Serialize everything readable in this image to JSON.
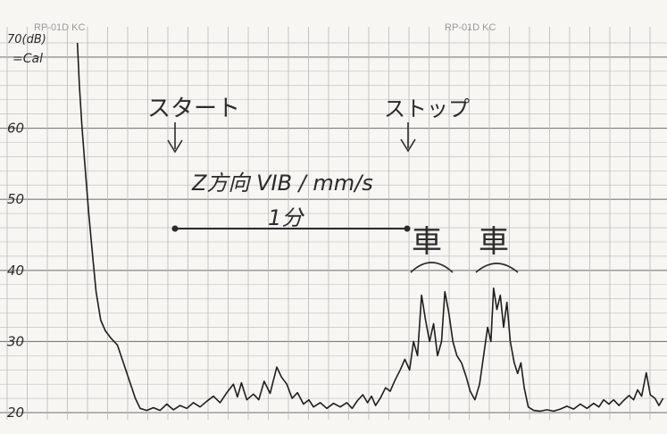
{
  "chart_data": {
    "type": "line",
    "header_left": "RP-01D KC",
    "header_right": "RP-01D KC",
    "y_unit_label": "70(dB)",
    "cal_label": "=Cal",
    "yticks": [
      {
        "value": 70,
        "label": "70"
      },
      {
        "value": 60,
        "label": "60"
      },
      {
        "value": 50,
        "label": "50"
      },
      {
        "value": 40,
        "label": "40"
      },
      {
        "value": 30,
        "label": "30"
      },
      {
        "value": 20,
        "label": "20"
      }
    ],
    "ylim": [
      19,
      73
    ],
    "xlim": [
      0,
      100
    ],
    "grid": true,
    "annotations": {
      "start": "スタート",
      "stop": "ストップ",
      "title": "Z方向 VIB / mm/s",
      "duration": "1分",
      "car": "車",
      "start_x": 25.4,
      "stop_x": 60.5,
      "car1_x": 64.5,
      "car2_x": 74.2
    },
    "series": [
      {
        "points": [
          [
            11.6,
            72
          ],
          [
            11.9,
            66
          ],
          [
            12.3,
            60
          ],
          [
            12.8,
            54
          ],
          [
            13.3,
            48
          ],
          [
            13.9,
            42
          ],
          [
            14.4,
            37
          ],
          [
            15.1,
            33
          ],
          [
            15.8,
            31.5
          ],
          [
            16.6,
            30.5
          ],
          [
            17.6,
            29.5
          ],
          [
            18.5,
            27
          ],
          [
            19.4,
            24.5
          ],
          [
            20.3,
            22
          ],
          [
            21.0,
            20.6
          ],
          [
            22.0,
            20.3
          ],
          [
            23.0,
            20.7
          ],
          [
            24.0,
            20.3
          ],
          [
            25.0,
            21.2
          ],
          [
            26.0,
            20.4
          ],
          [
            27.0,
            21.0
          ],
          [
            28.0,
            20.6
          ],
          [
            29.0,
            21.4
          ],
          [
            30.0,
            20.8
          ],
          [
            31.0,
            21.6
          ],
          [
            32.0,
            22.3
          ],
          [
            33.0,
            21.4
          ],
          [
            34.0,
            22.8
          ],
          [
            35.0,
            24.0
          ],
          [
            35.6,
            22.2
          ],
          [
            36.2,
            24.2
          ],
          [
            37.0,
            21.8
          ],
          [
            38.0,
            22.6
          ],
          [
            38.8,
            21.8
          ],
          [
            39.6,
            24.4
          ],
          [
            40.5,
            22.7
          ],
          [
            41.5,
            26.4
          ],
          [
            42.2,
            25.0
          ],
          [
            43.0,
            24.0
          ],
          [
            43.8,
            22.0
          ],
          [
            44.6,
            22.8
          ],
          [
            45.5,
            21.2
          ],
          [
            46.3,
            21.8
          ],
          [
            47.0,
            20.8
          ],
          [
            48.0,
            21.4
          ],
          [
            49.0,
            20.6
          ],
          [
            50.0,
            21.3
          ],
          [
            51.0,
            20.8
          ],
          [
            52.0,
            21.4
          ],
          [
            52.8,
            20.6
          ],
          [
            53.6,
            21.7
          ],
          [
            54.4,
            22.5
          ],
          [
            55.1,
            21.4
          ],
          [
            55.7,
            22.3
          ],
          [
            56.3,
            21.0
          ],
          [
            57.0,
            22.0
          ],
          [
            57.8,
            23.5
          ],
          [
            58.5,
            23.0
          ],
          [
            59.2,
            24.5
          ],
          [
            60.0,
            26.0
          ],
          [
            60.7,
            27.5
          ],
          [
            61.4,
            26.0
          ],
          [
            62.0,
            30.0
          ],
          [
            62.6,
            28.0
          ],
          [
            63.2,
            36.5
          ],
          [
            63.8,
            33.0
          ],
          [
            64.4,
            30.0
          ],
          [
            65.0,
            32.5
          ],
          [
            65.6,
            28.0
          ],
          [
            66.2,
            30.0
          ],
          [
            66.7,
            37.0
          ],
          [
            67.3,
            34.0
          ],
          [
            67.9,
            30.0
          ],
          [
            68.5,
            28.0
          ],
          [
            69.2,
            27.0
          ],
          [
            69.9,
            25.0
          ],
          [
            70.5,
            23.0
          ],
          [
            71.2,
            21.8
          ],
          [
            71.9,
            24.0
          ],
          [
            72.5,
            28.0
          ],
          [
            73.1,
            32.0
          ],
          [
            73.6,
            30.0
          ],
          [
            74.0,
            37.5
          ],
          [
            74.5,
            34.5
          ],
          [
            75.0,
            36.5
          ],
          [
            75.5,
            32.0
          ],
          [
            76.0,
            35.5
          ],
          [
            76.5,
            30.0
          ],
          [
            77.1,
            27.0
          ],
          [
            77.6,
            25.5
          ],
          [
            78.1,
            27.0
          ],
          [
            78.6,
            23.5
          ],
          [
            79.2,
            20.8
          ],
          [
            80.0,
            20.3
          ],
          [
            81.0,
            20.2
          ],
          [
            82.0,
            20.4
          ],
          [
            83.0,
            20.2
          ],
          [
            84.0,
            20.5
          ],
          [
            85.0,
            20.9
          ],
          [
            86.0,
            20.5
          ],
          [
            87.0,
            21.2
          ],
          [
            88.0,
            20.6
          ],
          [
            89.0,
            21.3
          ],
          [
            89.8,
            20.8
          ],
          [
            90.5,
            21.8
          ],
          [
            91.3,
            21.2
          ],
          [
            92.0,
            21.8
          ],
          [
            92.8,
            21.0
          ],
          [
            93.5,
            21.7
          ],
          [
            94.3,
            22.4
          ],
          [
            95.0,
            21.8
          ],
          [
            95.6,
            23.2
          ],
          [
            96.2,
            22.3
          ],
          [
            96.9,
            25.6
          ],
          [
            97.5,
            22.5
          ],
          [
            98.2,
            22.0
          ],
          [
            98.8,
            21.0
          ],
          [
            99.4,
            22.0
          ]
        ]
      }
    ]
  }
}
